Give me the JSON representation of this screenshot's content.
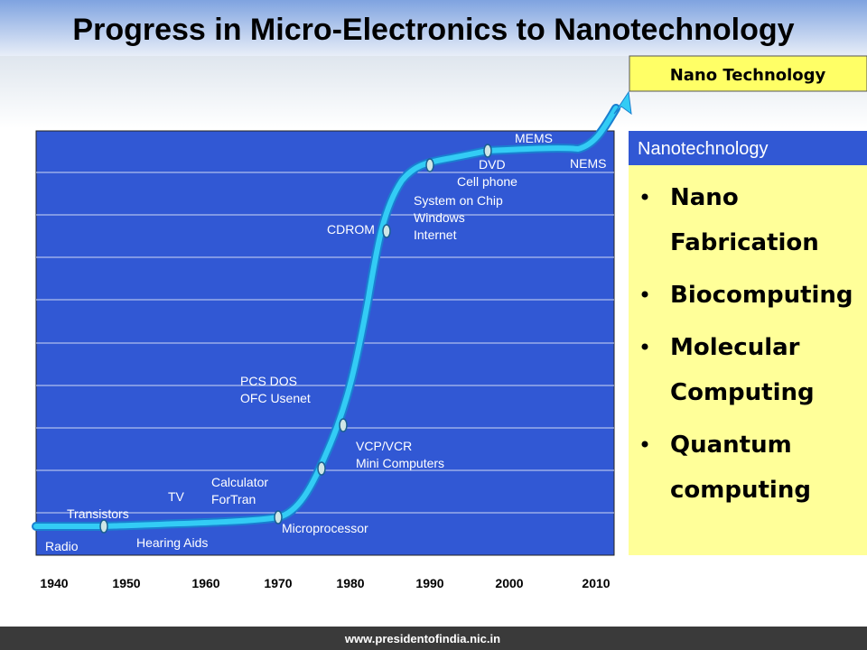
{
  "header": {
    "title": "Progress in Micro-Electronics to Nanotechnology"
  },
  "badge": "Nano Technology",
  "timeline": {
    "years": [
      "1940",
      "1950",
      "1960",
      "1970",
      "1980",
      "1990",
      "2000",
      "2010"
    ],
    "labels": [
      "Radio",
      "Transistors",
      "Hearing Aids",
      "TV",
      "Calculator",
      "ForTran",
      "Microprocessor",
      "VCP/VCR",
      "Mini Computers",
      "PCS DOS",
      "OFC Usenet",
      "CDROM",
      "System on Chip",
      "Windows",
      "Internet",
      "DVD",
      "Cell phone",
      "MEMS",
      "NEMS"
    ]
  },
  "panel": {
    "title": "Nanotechnology",
    "items": [
      [
        "Nano",
        "Fabrication"
      ],
      [
        "Biocomputing"
      ],
      [
        "Molecular",
        "Computing"
      ],
      [
        "Quantum",
        "computing"
      ]
    ]
  },
  "footer": "www.presidentofindia.nic.in"
}
